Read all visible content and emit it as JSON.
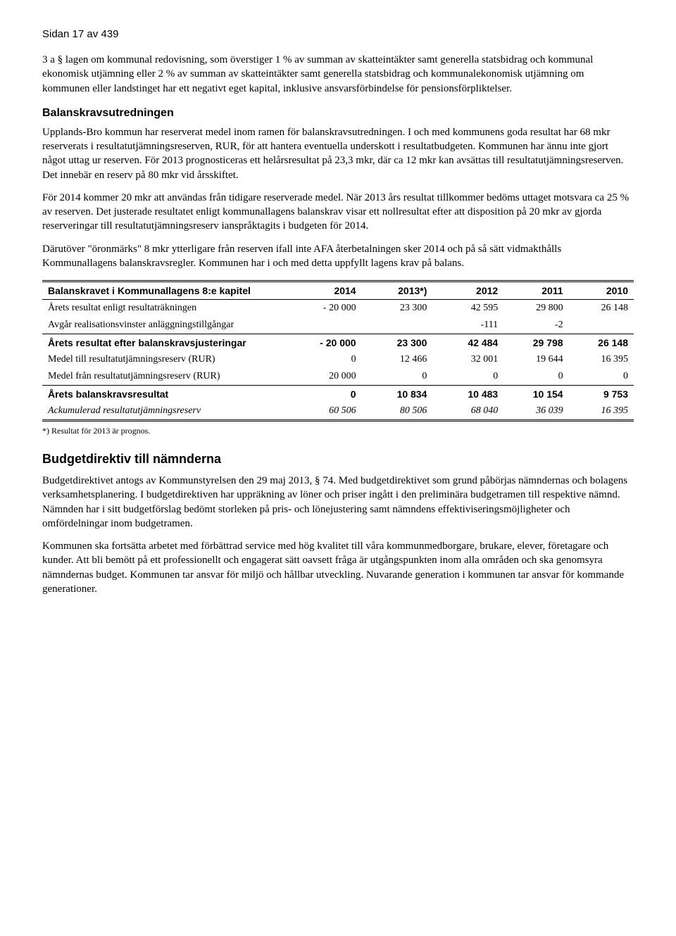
{
  "page_header": "Sidan 17 av 439",
  "intro": "3 a § lagen om kommunal redovisning, som överstiger 1 % av summan av skatteintäkter samt generella statsbidrag och kommunal ekonomisk utjämning eller 2 % av summan av skatteintäkter samt generella statsbidrag och kommunalekonomisk utjämning om kommunen eller landstinget har ett negativt eget kapital, inklusive ansvarsförbindelse för pensionsförpliktelser.",
  "balans_heading": "Balanskravsutredningen",
  "balans_p1": "Upplands-Bro kommun har reserverat medel inom ramen för balanskravsutredningen. I och med kommunens goda resultat har 68 mkr reserverats i resultatutjämningsreserven, RUR, för att hantera eventuella underskott i resultatbudgeten. Kommunen har ännu inte gjort något uttag ur reserven. För 2013 prognosticeras ett helårsresultat på 23,3 mkr, där ca 12 mkr kan avsättas till resultatutjämningsreserven. Det innebär en reserv på 80 mkr vid årsskiftet.",
  "balans_p2": "För 2014 kommer 20 mkr att användas från tidigare reserverade medel. När 2013 års resultat tillkommer bedöms uttaget motsvara ca 25 % av reserven. Det justerade resultatet enligt kommunallagens balanskrav visar ett nollresultat efter att disposition på 20 mkr av gjorda reserveringar till resultatutjämningsreserv ianspråktagits i budgeten för 2014.",
  "balans_p3": "Därutöver \"öronmärks\" 8 mkr ytterligare från reserven ifall inte AFA återbetalningen sker 2014 och på så sätt vidmakthålls Kommunallagens balanskravsregler. Kommunen har i och med detta uppfyllt lagens krav på balans.",
  "table": {
    "columns": [
      "Balanskravet i Kommunallagens 8:e kapitel",
      "2014",
      "2013*)",
      "2012",
      "2011",
      "2010"
    ],
    "col_widths": [
      "42%",
      "12%",
      "12%",
      "12%",
      "11%",
      "11%"
    ],
    "rows": [
      {
        "label": "Årets resultat enligt resultaträkningen",
        "cells": [
          "- 20 000",
          "23 300",
          "42 595",
          "29 800",
          "26 148"
        ],
        "bold": false,
        "italic": false,
        "sep": false
      },
      {
        "label": "Avgår realisationsvinster anläggningstillgångar",
        "cells": [
          "",
          "",
          "-111",
          "-2",
          ""
        ],
        "bold": false,
        "italic": false,
        "sep": true
      },
      {
        "label": "Årets resultat efter balanskravsjusteringar",
        "cells": [
          "- 20 000",
          "23 300",
          "42 484",
          "29 798",
          "26 148"
        ],
        "bold": true,
        "italic": false,
        "sep": false
      },
      {
        "label": "Medel till resultatutjämningsreserv (RUR)",
        "cells": [
          "0",
          "12 466",
          "32 001",
          "19 644",
          "16 395"
        ],
        "bold": false,
        "italic": false,
        "sep": false
      },
      {
        "label": "Medel från resultatutjämningsreserv (RUR)",
        "cells": [
          "20 000",
          "0",
          "0",
          "0",
          "0"
        ],
        "bold": false,
        "italic": false,
        "sep": true
      },
      {
        "label": "Årets balanskravsresultat",
        "cells": [
          "0",
          "10 834",
          "10 483",
          "10 154",
          "9 753"
        ],
        "bold": true,
        "italic": false,
        "sep": false
      },
      {
        "label": "Ackumulerad resultatutjämningsreserv",
        "cells": [
          "60 506",
          "80 506",
          "68 040",
          "36 039",
          "16 395"
        ],
        "bold": false,
        "italic": true,
        "sep": false,
        "last": true
      }
    ]
  },
  "footnote": "*) Resultat för 2013 är prognos.",
  "budget_heading": "Budgetdirektiv till nämnderna",
  "budget_p1": "Budgetdirektivet antogs av Kommunstyrelsen den 29 maj 2013, § 74. Med budgetdirektivet som grund påbörjas nämndernas och bolagens verksamhetsplanering. I budgetdirektiven har uppräkning av löner och priser ingått i den preliminära budgetramen till respektive nämnd. Nämnden har i sitt budgetförslag bedömt storleken på pris- och lönejustering samt nämndens effektiviseringsmöjligheter och omfördelningar inom budgetramen.",
  "budget_p2": "Kommunen ska fortsätta arbetet med förbättrad service med hög kvalitet till våra kommunmedborgare, brukare, elever, företagare och kunder. Att bli bemött på ett professionellt och engagerat sätt oavsett fråga är utgångspunkten inom alla områden och ska genomsyra nämndernas budget. Kommunen tar ansvar för miljö och hållbar utveckling. Nuvarande generation i kommunen tar ansvar för kommande generationer."
}
